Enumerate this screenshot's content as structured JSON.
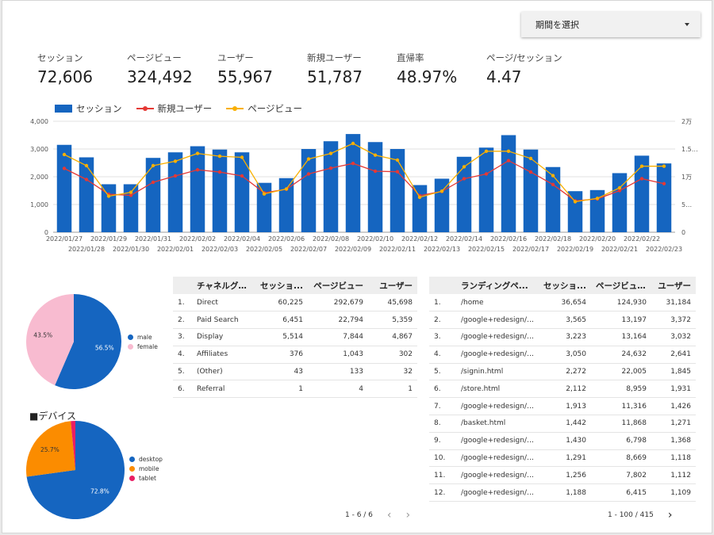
{
  "date_selector": {
    "label": "期間を選択"
  },
  "kpis": [
    {
      "label": "セッション",
      "value": "72,606"
    },
    {
      "label": "ページビュー",
      "value": "324,492"
    },
    {
      "label": "ユーザー",
      "value": "55,967"
    },
    {
      "label": "新規ユーザー",
      "value": "51,787"
    },
    {
      "label": "直帰率",
      "value": "48.97%"
    },
    {
      "label": "ページ/セッション",
      "value": "4.47"
    }
  ],
  "chart_data": [
    {
      "type": "bar",
      "combo": "bar+line",
      "categories": [
        "2022/01/27",
        "2022/01/28",
        "2022/01/29",
        "2022/01/30",
        "2022/01/31",
        "2022/02/01",
        "2022/02/02",
        "2022/02/03",
        "2022/02/04",
        "2022/02/05",
        "2022/02/06",
        "2022/02/07",
        "2022/02/08",
        "2022/02/09",
        "2022/02/10",
        "2022/02/11",
        "2022/02/12",
        "2022/02/13",
        "2022/02/14",
        "2022/02/15",
        "2022/02/16",
        "2022/02/17",
        "2022/02/18",
        "2022/02/19",
        "2022/02/20",
        "2022/02/21",
        "2022/02/22",
        "2022/02/23"
      ],
      "series": [
        {
          "name": "セッション",
          "type": "bar",
          "axis": "left",
          "color": "#1565c0",
          "values": [
            3150,
            2700,
            1730,
            1730,
            2680,
            2880,
            3100,
            2980,
            2880,
            1780,
            1950,
            3000,
            3280,
            3540,
            3250,
            3000,
            1700,
            1930,
            2720,
            3050,
            3500,
            2980,
            2350,
            1480,
            1520,
            2130,
            2760,
            2480
          ]
        },
        {
          "name": "新規ユーザー",
          "type": "line",
          "axis": "left",
          "color": "#e53935",
          "values": [
            2300,
            1900,
            1370,
            1330,
            1800,
            2030,
            2250,
            2170,
            2030,
            1420,
            1550,
            2100,
            2310,
            2480,
            2200,
            2180,
            1320,
            1470,
            1930,
            2100,
            2580,
            2170,
            1720,
            1130,
            1200,
            1500,
            1930,
            1750
          ]
        },
        {
          "name": "ページビュー",
          "type": "line",
          "axis": "right",
          "color": "#f9b000",
          "values": [
            14000,
            12000,
            6500,
            7200,
            12000,
            12800,
            14200,
            13700,
            13500,
            6900,
            7800,
            13200,
            14200,
            16000,
            13900,
            13000,
            6300,
            7400,
            11800,
            14600,
            14600,
            13300,
            10200,
            5500,
            6100,
            8000,
            11900,
            11900
          ]
        }
      ],
      "y_left": {
        "min": 0,
        "max": 4000,
        "ticks": [
          "0",
          "1,000",
          "2,000",
          "3,000",
          "4,000"
        ]
      },
      "y_right": {
        "min": 0,
        "max": 20000,
        "ticks": [
          "0",
          "5…",
          "1万",
          "1.5…",
          "2万"
        ]
      },
      "grid": true,
      "legend": "top-left"
    },
    {
      "type": "pie",
      "slices": [
        {
          "label": "male",
          "value": 56.5,
          "color": "#1565c0",
          "pct": "56.5%"
        },
        {
          "label": "female",
          "value": 43.5,
          "color": "#f8bbd0",
          "pct": "43.5%"
        }
      ],
      "legend": "right"
    },
    {
      "type": "pie",
      "title": "■デバイス",
      "slices": [
        {
          "label": "desktop",
          "value": 72.8,
          "color": "#1565c0",
          "pct": "72.8%"
        },
        {
          "label": "mobile",
          "value": 25.7,
          "color": "#fb8c00",
          "pct": "25.7%"
        },
        {
          "label": "tablet",
          "value": 1.5,
          "color": "#e91e63",
          "pct": ""
        }
      ],
      "legend": "right"
    }
  ],
  "channel_table": {
    "headers": [
      "",
      "チャネルグ...",
      "セッショ...",
      "ページビュー",
      "ユーザー"
    ],
    "rows": [
      [
        "1.",
        "Direct",
        "60,225",
        "292,679",
        "45,698"
      ],
      [
        "2.",
        "Paid Search",
        "6,451",
        "22,794",
        "5,359"
      ],
      [
        "3.",
        "Display",
        "5,514",
        "7,844",
        "4,867"
      ],
      [
        "4.",
        "Affiliates",
        "376",
        "1,043",
        "302"
      ],
      [
        "5.",
        "(Other)",
        "43",
        "133",
        "32"
      ],
      [
        "6.",
        "Referral",
        "1",
        "4",
        "1"
      ]
    ],
    "pager": "1 - 6 / 6"
  },
  "landing_table": {
    "headers": [
      "",
      "ランディングペ...",
      "セッショ...",
      "ページビュ...",
      "ユーザー"
    ],
    "rows": [
      [
        "1.",
        "/home",
        "36,654",
        "124,930",
        "31,184"
      ],
      [
        "2.",
        "/google+redesign/ap...",
        "3,565",
        "13,197",
        "3,372"
      ],
      [
        "3.",
        "/google+redesign/sh...",
        "3,223",
        "13,164",
        "3,032"
      ],
      [
        "4.",
        "/google+redesign/ap...",
        "3,050",
        "24,632",
        "2,641"
      ],
      [
        "5.",
        "/signin.html",
        "2,272",
        "22,005",
        "1,845"
      ],
      [
        "6.",
        "/store.html",
        "2,112",
        "8,959",
        "1,931"
      ],
      [
        "7.",
        "/google+redesign/new",
        "1,913",
        "11,316",
        "1,426"
      ],
      [
        "8.",
        "/basket.html",
        "1,442",
        "11,868",
        "1,271"
      ],
      [
        "9.",
        "/google+redesign/ap...",
        "1,430",
        "6,798",
        "1,368"
      ],
      [
        "10.",
        "/google+redesign/sh...",
        "1,291",
        "8,669",
        "1,118"
      ],
      [
        "11.",
        "/google+redesign/life...",
        "1,256",
        "7,802",
        "1,112"
      ],
      [
        "12.",
        "/google+redesign/life...",
        "1,188",
        "6,415",
        "1,109"
      ]
    ],
    "pager": "1 - 100 / 415"
  }
}
